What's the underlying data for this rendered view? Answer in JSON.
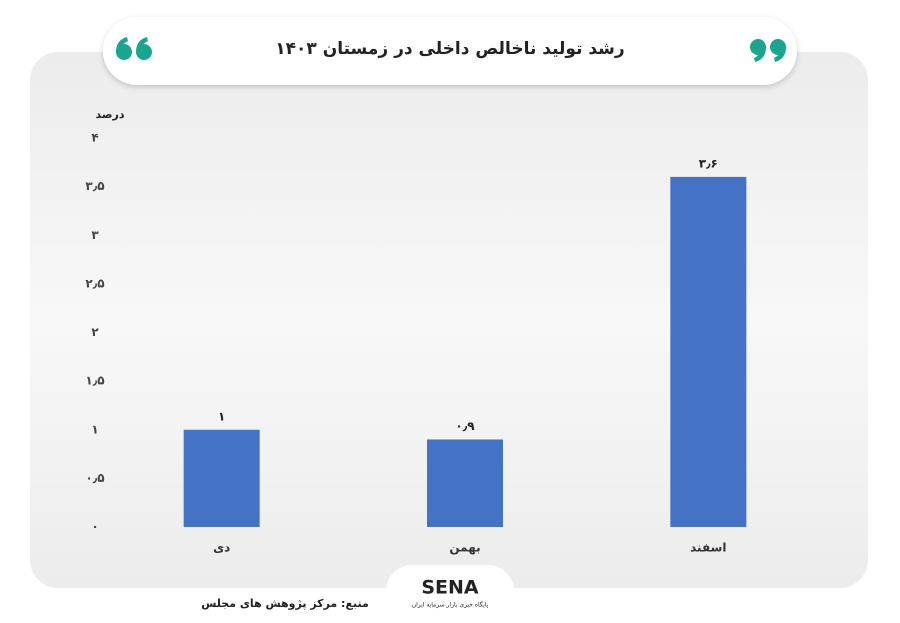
{
  "chart_data": {
    "type": "bar",
    "title": "رشد تولید ناخالص داخلی در زمستان ۱۴۰۳",
    "ylabel": "درصد",
    "categories": [
      "دی",
      "بهمن",
      "اسفند"
    ],
    "values": [
      1,
      0.9,
      3.6
    ],
    "value_labels": [
      "۱",
      "۰٫۹",
      "۳٫۶"
    ],
    "color": "#4472c4",
    "ylim": [
      0,
      4
    ],
    "yticks": [
      {
        "value": 0,
        "label": "۰"
      },
      {
        "value": 0.5,
        "label": "۰٫۵"
      },
      {
        "value": 1,
        "label": "۱"
      },
      {
        "value": 1.5,
        "label": "۱٫۵"
      },
      {
        "value": 2,
        "label": "۲"
      },
      {
        "value": 2.5,
        "label": "۲٫۵"
      },
      {
        "value": 3,
        "label": "۳"
      },
      {
        "value": 3.5,
        "label": "۳٫۵"
      },
      {
        "value": 4,
        "label": "۴"
      }
    ],
    "grid": false
  },
  "source": "منبع: مرکز پژوهش های مجلس",
  "logo": {
    "text": "SENA",
    "tagline": "پایگاه خبری بازار سرمایه ایران"
  }
}
